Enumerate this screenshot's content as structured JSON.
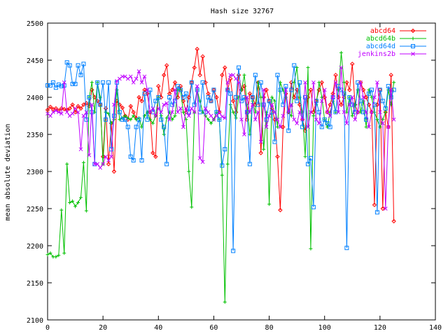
{
  "chart_data": {
    "type": "line",
    "title": "Hash size 32767",
    "xlabel": "",
    "ylabel": "mean absolute deviation",
    "xlim": [
      0,
      140
    ],
    "ylim": [
      2100,
      2500
    ],
    "xticks": [
      0,
      20,
      40,
      60,
      80,
      100,
      120,
      140
    ],
    "yticks": [
      2100,
      2150,
      2200,
      2250,
      2300,
      2350,
      2400,
      2450,
      2500
    ],
    "grid": false,
    "legend_position": "top-right",
    "series": [
      {
        "name": "abcd64",
        "color": "#ff0000",
        "marker": "diamond",
        "x": [
          0,
          1,
          2,
          3,
          4,
          5,
          6,
          7,
          8,
          9,
          10,
          11,
          12,
          13,
          14,
          15,
          16,
          17,
          18,
          19,
          20,
          21,
          22,
          23,
          24,
          25,
          26,
          27,
          28,
          29,
          30,
          31,
          32,
          33,
          34,
          35,
          36,
          37,
          38,
          39,
          40,
          41,
          42,
          43,
          44,
          45,
          46,
          47,
          48,
          49,
          50,
          51,
          52,
          53,
          54,
          55,
          56,
          57,
          58,
          59,
          60,
          61,
          62,
          63,
          64,
          65,
          66,
          67,
          68,
          69,
          70,
          71,
          72,
          73,
          74,
          75,
          76,
          77,
          78,
          79,
          80,
          81,
          82,
          83,
          84,
          85,
          86,
          87,
          88,
          89,
          90,
          91,
          92,
          93,
          94,
          95,
          96,
          97,
          98,
          99,
          100,
          101,
          102,
          103,
          104,
          105,
          106,
          107,
          108,
          109,
          110,
          111,
          112,
          113,
          114,
          115,
          116,
          117,
          118,
          119,
          120,
          121,
          122,
          123,
          124,
          125
        ],
        "y": [
          2383,
          2387,
          2384,
          2385,
          2382,
          2385,
          2384,
          2383,
          2385,
          2390,
          2380,
          2388,
          2385,
          2390,
          2392,
          2388,
          2410,
          2400,
          2395,
          2390,
          2320,
          2385,
          2310,
          2365,
          2300,
          2395,
          2390,
          2386,
          2375,
          2370,
          2388,
          2380,
          2372,
          2400,
          2395,
          2410,
          2405,
          2380,
          2325,
          2320,
          2415,
          2400,
          2430,
          2443,
          2405,
          2410,
          2420,
          2400,
          2415,
          2395,
          2380,
          2400,
          2420,
          2440,
          2465,
          2430,
          2455,
          2420,
          2405,
          2395,
          2410,
          2400,
          2380,
          2430,
          2440,
          2410,
          2425,
          2395,
          2380,
          2430,
          2410,
          2415,
          2370,
          2405,
          2400,
          2390,
          2420,
          2325,
          2400,
          2410,
          2395,
          2385,
          2370,
          2320,
          2248,
          2360,
          2405,
          2380,
          2420,
          2400,
          2410,
          2390,
          2370,
          2355,
          2400,
          2410,
          2380,
          2395,
          2410,
          2420,
          2400,
          2380,
          2390,
          2405,
          2430,
          2400,
          2390,
          2400,
          2420,
          2410,
          2445,
          2390,
          2380,
          2420,
          2410,
          2400,
          2390,
          2380,
          2255,
          2390,
          2410,
          2250,
          2380,
          2360,
          2430,
          2233
        ]
      },
      {
        "name": "abcd64b",
        "color": "#00c000",
        "marker": "plus",
        "x": [
          0,
          1,
          2,
          3,
          4,
          5,
          6,
          7,
          8,
          9,
          10,
          11,
          12,
          13,
          14,
          15,
          16,
          17,
          18,
          19,
          20,
          21,
          22,
          23,
          24,
          25,
          26,
          27,
          28,
          29,
          30,
          31,
          32,
          33,
          34,
          35,
          36,
          37,
          38,
          39,
          40,
          41,
          42,
          43,
          44,
          45,
          46,
          47,
          48,
          49,
          50,
          51,
          52,
          53,
          54,
          55,
          56,
          57,
          58,
          59,
          60,
          61,
          62,
          63,
          64,
          65,
          66,
          67,
          68,
          69,
          70,
          71,
          72,
          73,
          74,
          75,
          76,
          77,
          78,
          79,
          80,
          81,
          82,
          83,
          84,
          85,
          86,
          87,
          88,
          89,
          90,
          91,
          92,
          93,
          94,
          95,
          96,
          97,
          98,
          99,
          100,
          101,
          102,
          103,
          104,
          105,
          106,
          107,
          108,
          109,
          110,
          111,
          112,
          113,
          114,
          115,
          116,
          117,
          118,
          119,
          120,
          121,
          122,
          123,
          124,
          125
        ],
        "y": [
          2188,
          2190,
          2185,
          2185,
          2187,
          2248,
          2190,
          2310,
          2258,
          2260,
          2253,
          2258,
          2265,
          2312,
          2247,
          2400,
          2420,
          2380,
          2420,
          2400,
          2310,
          2380,
          2378,
          2365,
          2370,
          2410,
          2370,
          2372,
          2375,
          2372,
          2370,
          2375,
          2370,
          2372,
          2360,
          2375,
          2380,
          2370,
          2365,
          2375,
          2400,
          2375,
          2350,
          2372,
          2380,
          2370,
          2375,
          2410,
          2410,
          2380,
          2370,
          2300,
          2252,
          2380,
          2410,
          2395,
          2380,
          2375,
          2370,
          2365,
          2370,
          2380,
          2370,
          2295,
          2124,
          2310,
          2390,
          2380,
          2372,
          2400,
          2410,
          2430,
          2390,
          2350,
          2395,
          2380,
          2420,
          2400,
          2330,
          2380,
          2256,
          2400,
          2395,
          2360,
          2420,
          2410,
          2400,
          2380,
          2375,
          2420,
          2440,
          2400,
          2380,
          2320,
          2440,
          2196,
          2375,
          2390,
          2420,
          2400,
          2370,
          2360,
          2380,
          2395,
          2380,
          2410,
          2460,
          2420,
          2380,
          2400,
          2375,
          2390,
          2410,
          2380,
          2395,
          2360,
          2410,
          2400,
          2380,
          2370,
          2360,
          2370,
          2380,
          2410,
          2390,
          2420
        ]
      },
      {
        "name": "abcd64d",
        "color": "#0080ff",
        "marker": "square",
        "x": [
          0,
          1,
          2,
          3,
          4,
          5,
          6,
          7,
          8,
          9,
          10,
          11,
          12,
          13,
          14,
          15,
          16,
          17,
          18,
          19,
          20,
          21,
          22,
          23,
          24,
          25,
          26,
          27,
          28,
          29,
          30,
          31,
          32,
          33,
          34,
          35,
          36,
          37,
          38,
          39,
          40,
          41,
          42,
          43,
          44,
          45,
          46,
          47,
          48,
          49,
          50,
          51,
          52,
          53,
          54,
          55,
          56,
          57,
          58,
          59,
          60,
          61,
          62,
          63,
          64,
          65,
          66,
          67,
          68,
          69,
          70,
          71,
          72,
          73,
          74,
          75,
          76,
          77,
          78,
          79,
          80,
          81,
          82,
          83,
          84,
          85,
          86,
          87,
          88,
          89,
          90,
          91,
          92,
          93,
          94,
          95,
          96,
          97,
          98,
          99,
          100,
          101,
          102,
          103,
          104,
          105,
          106,
          107,
          108,
          109,
          110,
          111,
          112,
          113,
          114,
          115,
          116,
          117,
          118,
          119,
          120,
          121,
          122,
          123,
          124,
          125
        ],
        "y": [
          2416,
          2416,
          2420,
          2413,
          2417,
          2415,
          2416,
          2447,
          2443,
          2418,
          2418,
          2443,
          2430,
          2445,
          2370,
          2400,
          2380,
          2310,
          2420,
          2390,
          2420,
          2370,
          2420,
          2330,
          2375,
          2420,
          2380,
          2370,
          2370,
          2360,
          2320,
          2315,
          2360,
          2370,
          2315,
          2405,
          2370,
          2410,
          2380,
          2395,
          2400,
          2370,
          2360,
          2310,
          2400,
          2390,
          2395,
          2415,
          2410,
          2400,
          2405,
          2380,
          2420,
          2390,
          2410,
          2380,
          2420,
          2380,
          2400,
          2395,
          2410,
          2380,
          2370,
          2308,
          2330,
          2410,
          2405,
          2193,
          2400,
          2440,
          2395,
          2400,
          2380,
          2310,
          2400,
          2430,
          2390,
          2420,
          2390,
          2370,
          2395,
          2380,
          2340,
          2430,
          2410,
          2390,
          2415,
          2355,
          2410,
          2443,
          2395,
          2420,
          2360,
          2400,
          2310,
          2318,
          2252,
          2395,
          2380,
          2360,
          2370,
          2365,
          2360,
          2400,
          2380,
          2415,
          2410,
          2405,
          2197,
          2400,
          2390,
          2380,
          2420,
          2395,
          2380,
          2370,
          2405,
          2410,
          2390,
          2245,
          2410,
          2395,
          2385,
          2415,
          2400,
          2410
        ]
      },
      {
        "name": "jenkins2b",
        "color": "#c000ff",
        "marker": "cross",
        "x": [
          0,
          1,
          2,
          3,
          4,
          5,
          6,
          7,
          8,
          9,
          10,
          11,
          12,
          13,
          14,
          15,
          16,
          17,
          18,
          19,
          20,
          21,
          22,
          23,
          24,
          25,
          26,
          27,
          28,
          29,
          30,
          31,
          32,
          33,
          34,
          35,
          36,
          37,
          38,
          39,
          40,
          41,
          42,
          43,
          44,
          45,
          46,
          47,
          48,
          49,
          50,
          51,
          52,
          53,
          54,
          55,
          56,
          57,
          58,
          59,
          60,
          61,
          62,
          63,
          64,
          65,
          66,
          67,
          68,
          69,
          70,
          71,
          72,
          73,
          74,
          75,
          76,
          77,
          78,
          79,
          80,
          81,
          82,
          83,
          84,
          85,
          86,
          87,
          88,
          89,
          90,
          91,
          92,
          93,
          94,
          95,
          96,
          97,
          98,
          99,
          100,
          101,
          102,
          103,
          104,
          105,
          106,
          107,
          108,
          109,
          110,
          111,
          112,
          113,
          114,
          115,
          116,
          117,
          118,
          119,
          120,
          121,
          122,
          123,
          124,
          125
        ],
        "y": [
          2378,
          2375,
          2380,
          2382,
          2380,
          2378,
          2420,
          2380,
          2375,
          2378,
          2385,
          2380,
          2330,
          2375,
          2380,
          2322,
          2390,
          2310,
          2310,
          2305,
          2310,
          2320,
          2315,
          2320,
          2390,
          2422,
          2425,
          2428,
          2428,
          2425,
          2428,
          2420,
          2425,
          2435,
          2420,
          2428,
          2410,
          2380,
          2385,
          2375,
          2385,
          2380,
          2390,
          2392,
          2370,
          2380,
          2410,
          2380,
          2385,
          2360,
          2385,
          2375,
          2385,
          2380,
          2415,
          2318,
          2313,
          2385,
          2380,
          2375,
          2370,
          2375,
          2380,
          2374,
          2372,
          2420,
          2430,
          2430,
          2425,
          2420,
          2370,
          2350,
          2400,
          2380,
          2390,
          2370,
          2380,
          2340,
          2410,
          2360,
          2375,
          2390,
          2380,
          2370,
          2360,
          2375,
          2410,
          2380,
          2390,
          2370,
          2365,
          2380,
          2370,
          2420,
          2360,
          2380,
          2420,
          2370,
          2365,
          2395,
          2410,
          2380,
          2375,
          2400,
          2420,
          2380,
          2440,
          2380,
          2365,
          2390,
          2400,
          2370,
          2380,
          2420,
          2400,
          2380,
          2360,
          2380,
          2400,
          2420,
          2380,
          2365,
          2250,
          2360,
          2410,
          2370
        ]
      }
    ]
  }
}
